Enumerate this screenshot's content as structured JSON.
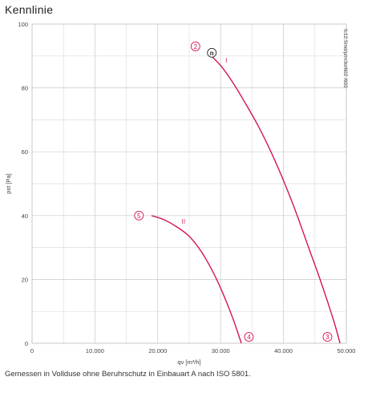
{
  "title": "Kennlinie",
  "footnote": "Gemessen in Vollduse ohne Beruhrschutz in Einbauart A nach ISO 5801.",
  "side_note": "fc12.5md/p/m3o/602 /602",
  "chart_data": {
    "type": "line",
    "xlabel": "qv [m³/h]",
    "ylabel": "pst [Pa]",
    "xlim": [
      0,
      50000
    ],
    "ylim": [
      0,
      100
    ],
    "x_ticks": [
      0,
      10000,
      20000,
      30000,
      40000,
      50000
    ],
    "x_tick_labels": [
      "0",
      "10.000",
      "20.000",
      "30.000",
      "40.000",
      "50.000"
    ],
    "y_ticks": [
      0,
      20,
      40,
      60,
      80,
      100
    ],
    "y_tick_labels": [
      "0",
      "20",
      "40",
      "60",
      "80",
      "100"
    ],
    "x_minor_step": 5000,
    "y_minor_step": 10,
    "grid": true,
    "series_color": "#d4145a",
    "series": [
      {
        "name": "I",
        "x": [
          28000,
          30000,
          32000,
          34000,
          36000,
          38000,
          40000,
          42000,
          44000,
          46000,
          48000,
          49000
        ],
        "y": [
          91,
          87,
          81.5,
          75,
          68,
          60,
          51,
          41,
          30,
          19,
          7,
          0
        ]
      },
      {
        "name": "II",
        "x": [
          19000,
          21000,
          23000,
          25000,
          27000,
          29000,
          30500,
          32000,
          33300
        ],
        "y": [
          40,
          38.7,
          36.5,
          33.5,
          28.5,
          21.5,
          15,
          7.5,
          0
        ]
      }
    ],
    "annotations": [
      {
        "text": "2",
        "x": 26000,
        "y": 93
      },
      {
        "text": "n",
        "x": 28600,
        "y": 91
      },
      {
        "text": "3",
        "x": 47000,
        "y": 2
      },
      {
        "text": "5",
        "x": 17000,
        "y": 40
      },
      {
        "text": "4",
        "x": 34500,
        "y": 2
      }
    ]
  }
}
